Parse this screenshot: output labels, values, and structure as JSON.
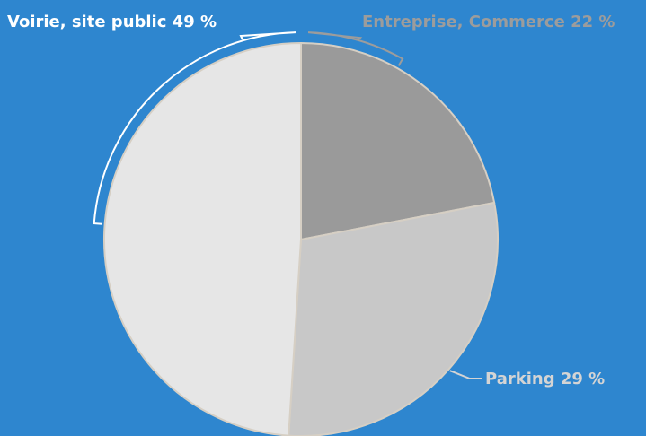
{
  "colors": {
    "background": "#2e86cf",
    "slice_border": "#d6cfc4",
    "label_light": "#ffffff",
    "label_mid": "#d4d4d4",
    "label_dark": "#9c9c9c"
  },
  "chart_data": {
    "type": "pie",
    "start_angle_deg": 0,
    "direction": "clockwise",
    "slices": [
      {
        "label": "Entreprise, Commerce 22 %",
        "category": "Entreprise, Commerce",
        "value": 22,
        "color": "#9a9a9a",
        "label_color": "#9c9c9c"
      },
      {
        "label": "Parking 29 %",
        "category": "Parking",
        "value": 29,
        "color": "#c8c8c8",
        "label_color": "#d4d4d4"
      },
      {
        "label": "Voirie, site public 49 %",
        "category": "Voirie, site public",
        "value": 49,
        "color": "#e6e6e6",
        "label_color": "#ffffff"
      }
    ]
  }
}
